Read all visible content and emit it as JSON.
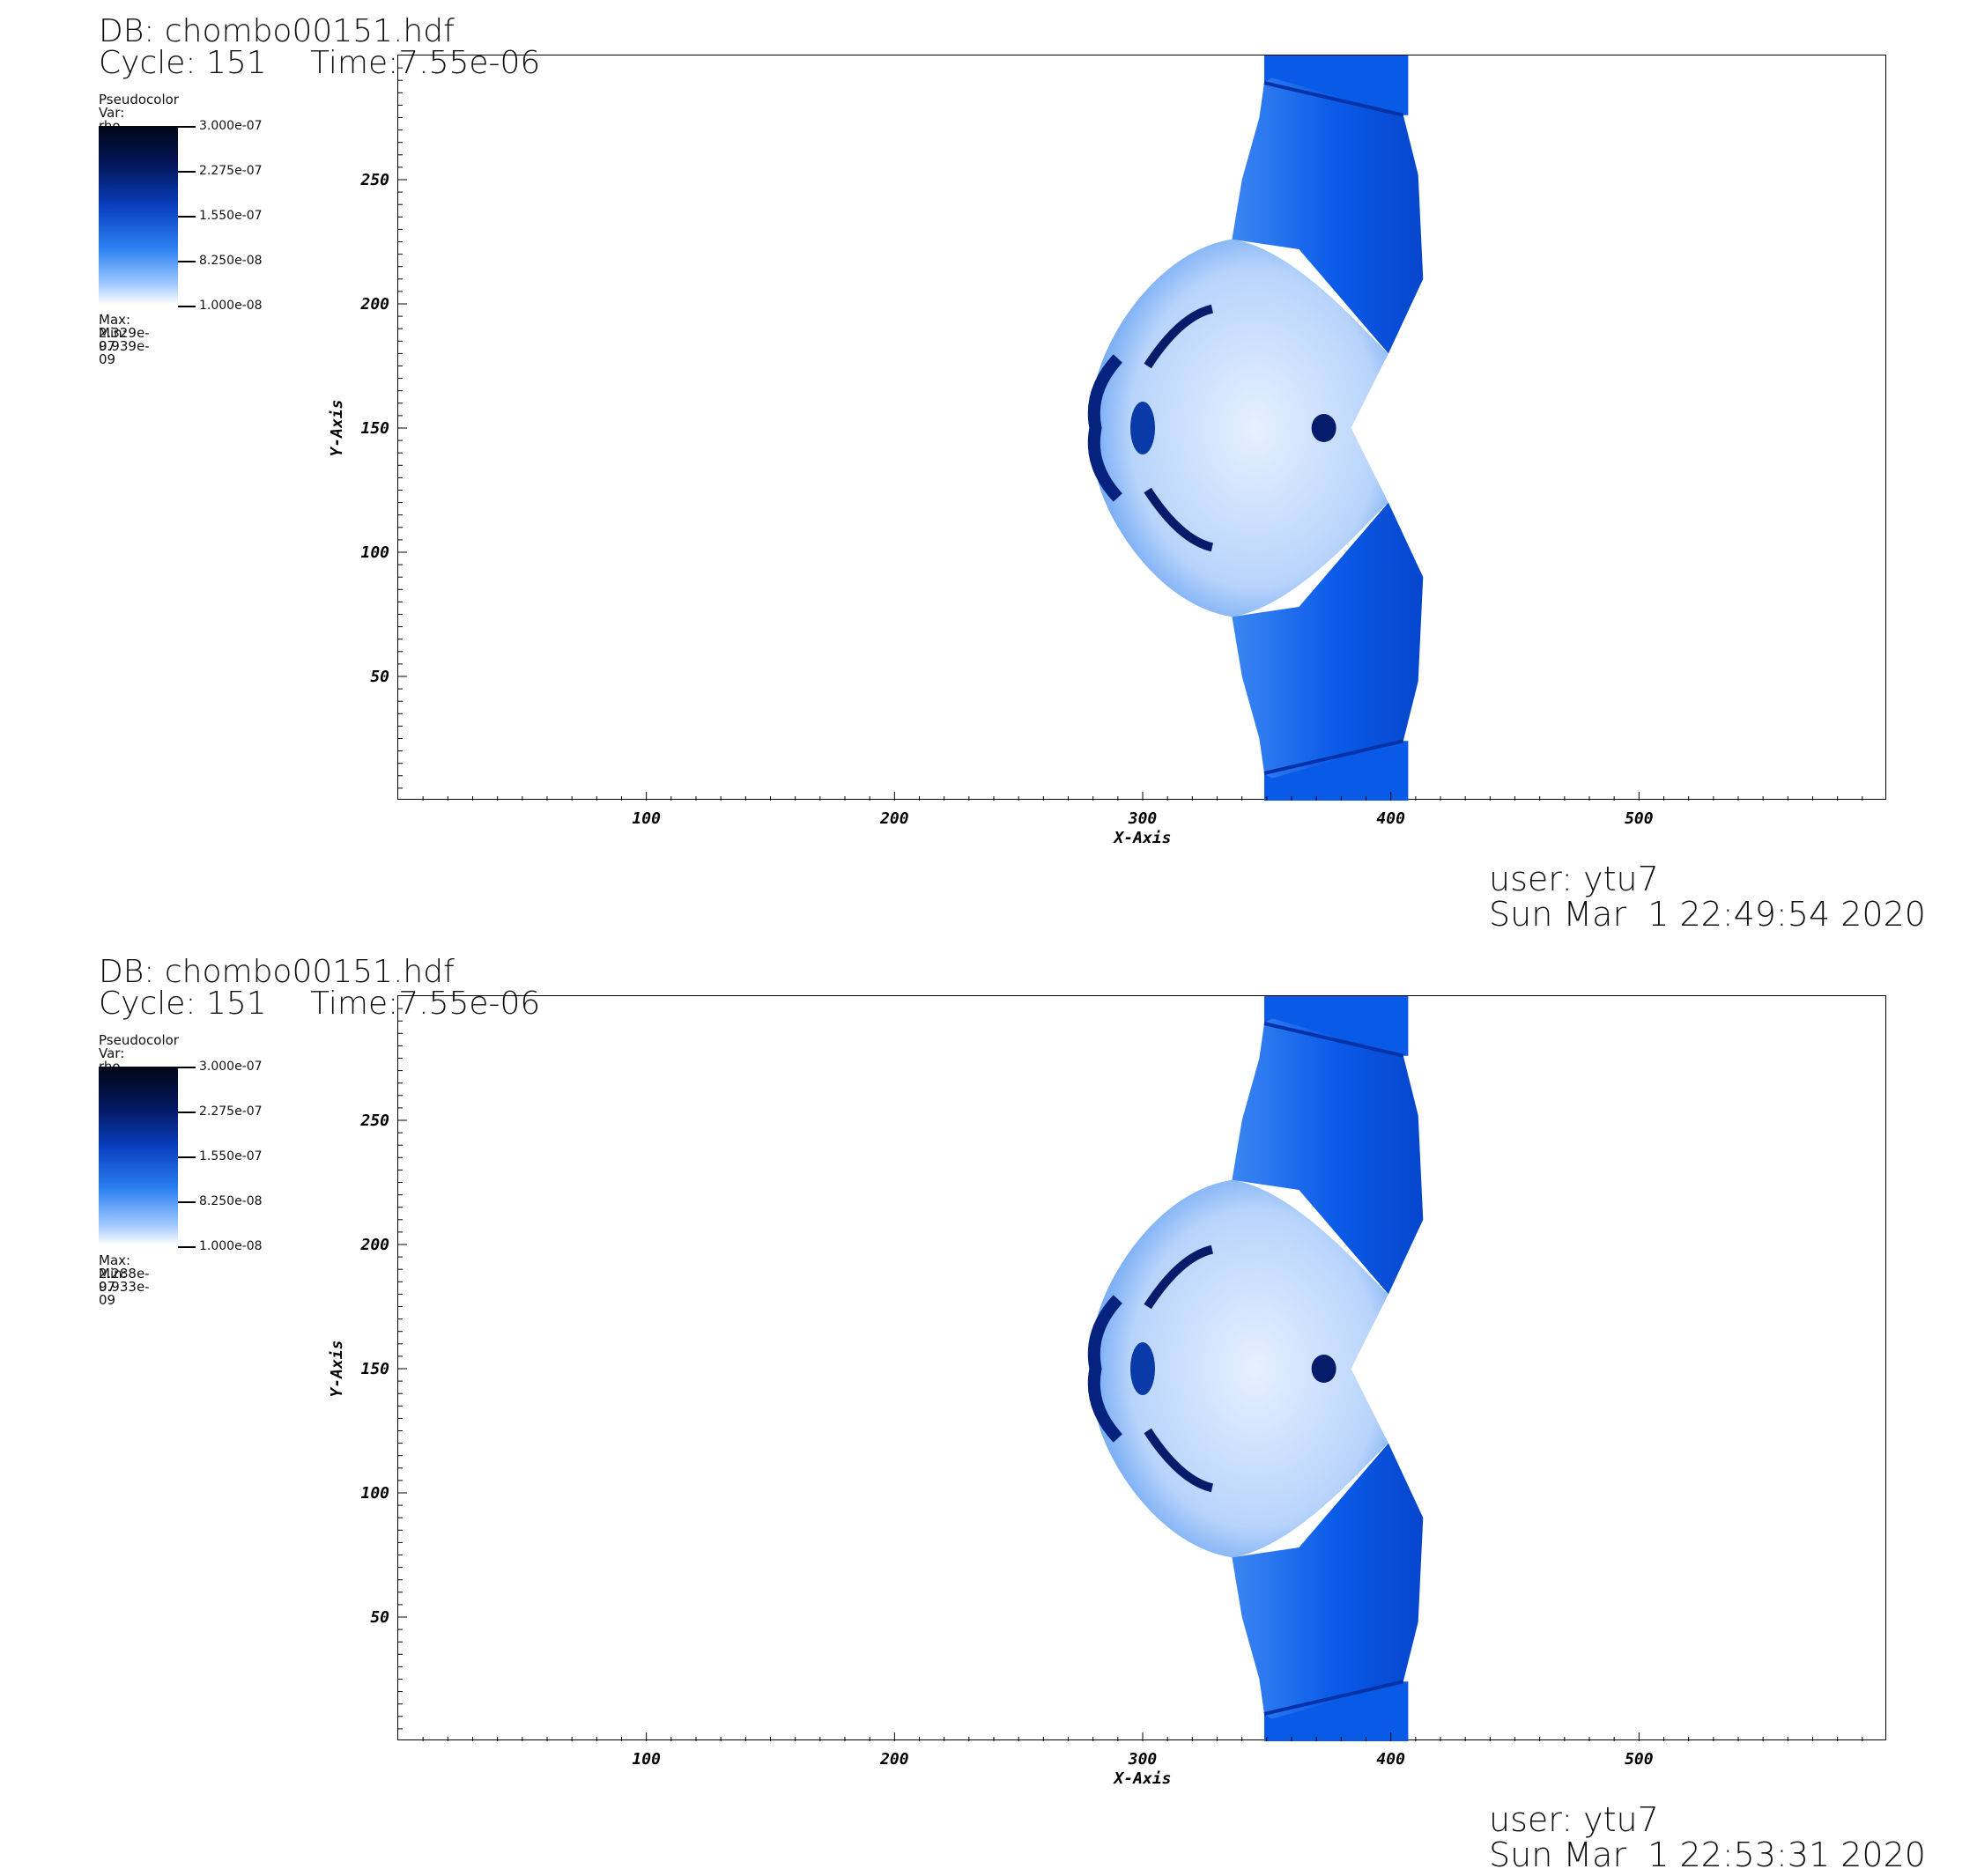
{
  "panels": [
    {
      "header": {
        "db": "DB: chombo00151.hdf",
        "cycle": "Cycle: 151",
        "time": "Time:7.55e-06"
      },
      "legend": {
        "title": "Pseudocolor",
        "var": "Var: rho",
        "ticks": [
          "3.000e-07",
          "2.275e-07",
          "1.550e-07",
          "8.250e-08",
          "1.000e-08"
        ],
        "max": "Max:  2.329e-07",
        "min": "Min:  9.939e-09"
      },
      "footer": {
        "user": "user: ytu7",
        "date": "Sun Mar  1 22:49:54 2020"
      }
    },
    {
      "header": {
        "db": "DB: chombo00151.hdf",
        "cycle": "Cycle: 151",
        "time": "Time:7.55e-06"
      },
      "legend": {
        "title": "Pseudocolor",
        "var": "Var: rho",
        "ticks": [
          "3.000e-07",
          "2.275e-07",
          "1.550e-07",
          "8.250e-08",
          "1.000e-08"
        ],
        "max": "Max:  2.288e-07",
        "min": "Min:  9.933e-09"
      },
      "footer": {
        "user": "user: ytu7",
        "date": "Sun Mar  1 22:53:31 2020"
      }
    }
  ],
  "chart_data": [
    {
      "type": "heatmap",
      "variable": "rho",
      "colormap_range": [
        1e-08,
        3e-07
      ],
      "data_max": 2.329e-07,
      "data_min": 9.939e-09,
      "xlabel": "X-Axis",
      "ylabel": "Y-Axis",
      "xlim": [
        0,
        600
      ],
      "ylim": [
        0,
        300
      ],
      "xticks": [
        100,
        200,
        300,
        400,
        500
      ],
      "yticks": [
        50,
        100,
        150,
        200,
        250
      ],
      "colors": {
        "low": "#ffffff",
        "mid": "#0a5ae8",
        "high": "#020616"
      }
    },
    {
      "type": "heatmap",
      "variable": "rho",
      "colormap_range": [
        1e-08,
        3e-07
      ],
      "data_max": 2.288e-07,
      "data_min": 9.933e-09,
      "xlabel": "X-Axis",
      "ylabel": "Y-Axis",
      "xlim": [
        0,
        600
      ],
      "ylim": [
        0,
        300
      ],
      "xticks": [
        100,
        200,
        300,
        400,
        500
      ],
      "yticks": [
        50,
        100,
        150,
        200,
        250
      ],
      "colors": {
        "low": "#ffffff",
        "mid": "#0a5ae8",
        "high": "#020616"
      }
    }
  ]
}
